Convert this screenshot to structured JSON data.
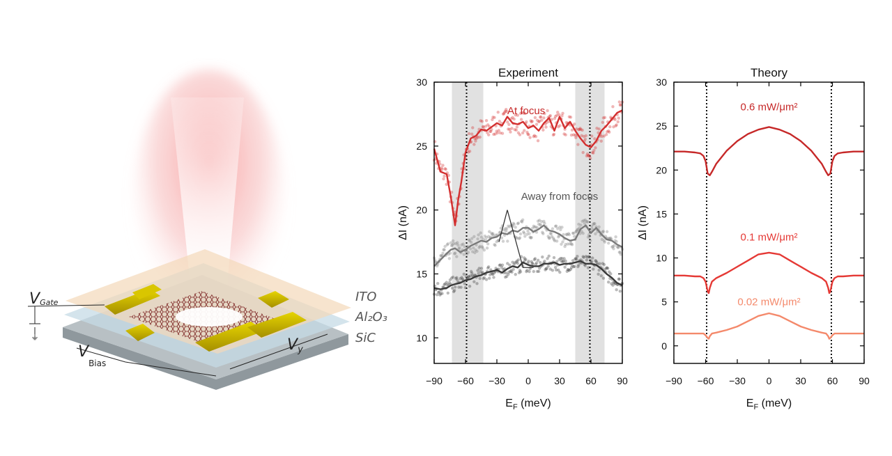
{
  "device": {
    "labels": {
      "v_gate_main": "V",
      "v_gate_sub": "Gate",
      "v_bias_main": "V",
      "v_bias_sub": "Bias",
      "v_y_main": "V",
      "v_y_sub": "y",
      "ito": "ITO",
      "al2o3": "Al₂O₃",
      "sic": "SiC"
    },
    "colors": {
      "laser": "#f28c8c",
      "gold": "#c8b400",
      "substrate": "#9aa3a8",
      "ito": "#f3d9b9"
    }
  },
  "chart_data": [
    {
      "type": "scatter",
      "title": "Experiment",
      "xlabel_main": "E",
      "xlabel_sub": "F",
      "xlabel_tail": " (meV)",
      "ylabel": "ΔI (nA)",
      "xlim": [
        -90,
        90
      ],
      "ylim": [
        8,
        30
      ],
      "xticks": [
        -90,
        -60,
        -30,
        0,
        30,
        60,
        90
      ],
      "yticks": [
        10,
        15,
        20,
        25,
        30
      ],
      "shaded_bands": [
        [
          -73,
          -60
        ],
        [
          -60,
          -43
        ],
        [
          45,
          58
        ],
        [
          58,
          73
        ]
      ],
      "dotted_lines": [
        -59,
        59
      ],
      "annotations": [
        {
          "text": "At focus",
          "x": -20,
          "y": 27.5
        },
        {
          "text": "Away from focus",
          "x": 30,
          "y": 20.8
        }
      ],
      "series": [
        {
          "name": "At focus",
          "color": "#d32f2f",
          "x": [
            -90,
            -84,
            -78,
            -74,
            -70,
            -67,
            -64,
            -60,
            -55,
            -50,
            -45,
            -40,
            -35,
            -30,
            -25,
            -20,
            -15,
            -10,
            -5,
            0,
            5,
            10,
            15,
            20,
            25,
            30,
            35,
            40,
            45,
            50,
            55,
            60,
            65,
            70,
            75,
            80,
            85,
            90
          ],
          "y": [
            24.8,
            23.0,
            22.8,
            21.0,
            18.8,
            20.8,
            22.2,
            24.5,
            25.6,
            25.8,
            26.3,
            26.2,
            26.5,
            26.8,
            26.6,
            27.3,
            26.8,
            26.7,
            26.9,
            26.4,
            26.6,
            26.2,
            26.8,
            27.2,
            26.2,
            27.3,
            26.4,
            26.9,
            26.2,
            25.6,
            25.1,
            24.9,
            25.4,
            26.2,
            26.6,
            27.1,
            27.6,
            27.8
          ]
        },
        {
          "name": "Away from focus",
          "color": "#7a7a7a",
          "x": [
            -90,
            -84,
            -78,
            -74,
            -70,
            -65,
            -60,
            -55,
            -50,
            -45,
            -40,
            -35,
            -30,
            -25,
            -20,
            -15,
            -10,
            -5,
            0,
            5,
            10,
            15,
            20,
            25,
            30,
            35,
            40,
            45,
            50,
            55,
            60,
            65,
            70,
            75,
            80,
            85,
            90
          ],
          "y": [
            15.6,
            16.1,
            16.6,
            16.9,
            17.0,
            16.7,
            16.9,
            17.2,
            17.4,
            17.6,
            17.5,
            17.8,
            17.9,
            18.2,
            18.1,
            18.4,
            18.3,
            18.6,
            18.6,
            18.3,
            18.5,
            18.8,
            18.4,
            18.3,
            18.1,
            17.8,
            17.6,
            17.7,
            18.5,
            18.8,
            18.2,
            18.6,
            18.1,
            17.7,
            17.6,
            17.3,
            17.1
          ]
        },
        {
          "name": "Away from focus",
          "color": "#3a3a3a",
          "x": [
            -90,
            -84,
            -78,
            -74,
            -70,
            -65,
            -60,
            -55,
            -50,
            -45,
            -40,
            -35,
            -30,
            -25,
            -20,
            -15,
            -10,
            -5,
            0,
            5,
            10,
            15,
            20,
            25,
            30,
            35,
            40,
            45,
            50,
            55,
            60,
            65,
            70,
            75,
            80,
            85,
            90
          ],
          "y": [
            13.9,
            13.8,
            13.9,
            14.1,
            14.2,
            14.3,
            14.5,
            14.6,
            14.8,
            14.9,
            15.1,
            15.2,
            15.3,
            15.1,
            15.4,
            15.6,
            15.5,
            15.9,
            15.7,
            15.6,
            15.6,
            15.8,
            15.8,
            15.9,
            15.7,
            15.8,
            15.8,
            15.9,
            16.0,
            15.8,
            15.8,
            15.7,
            15.4,
            15.0,
            14.7,
            14.3,
            14.1
          ]
        }
      ]
    },
    {
      "type": "line",
      "title": "Theory",
      "xlabel_main": "E",
      "xlabel_sub": "F",
      "xlabel_tail": " (meV)",
      "ylabel": "ΔI (nA)",
      "xlim": [
        -90,
        90
      ],
      "ylim": [
        -2,
        30
      ],
      "xticks": [
        -90,
        -60,
        -30,
        0,
        30,
        60,
        90
      ],
      "yticks": [
        0,
        5,
        10,
        15,
        20,
        25,
        30
      ],
      "dotted_lines": [
        -59,
        59
      ],
      "series": [
        {
          "name": "0.6 mW/μm²",
          "color": "#c62828",
          "x": [
            -90,
            -80,
            -70,
            -65,
            -62,
            -60,
            -58,
            -56,
            -54,
            -50,
            -40,
            -30,
            -20,
            -10,
            0,
            10,
            20,
            30,
            40,
            50,
            54,
            56,
            58,
            60,
            62,
            65,
            70,
            80,
            90
          ],
          "y": [
            22.1,
            22.1,
            22.0,
            21.9,
            21.6,
            21.0,
            19.6,
            19.4,
            19.8,
            20.7,
            22.2,
            23.3,
            24.1,
            24.6,
            24.9,
            24.6,
            24.1,
            23.3,
            22.2,
            20.7,
            19.8,
            19.4,
            19.6,
            21.0,
            21.6,
            21.9,
            22.0,
            22.1,
            22.1
          ]
        },
        {
          "name": "0.1 mW/μm²",
          "color": "#e53935",
          "x": [
            -90,
            -80,
            -70,
            -65,
            -62,
            -60,
            -58,
            -57,
            -56,
            -54,
            -50,
            -40,
            -30,
            -20,
            -10,
            0,
            10,
            20,
            30,
            40,
            50,
            54,
            56,
            57,
            58,
            60,
            62,
            65,
            70,
            80,
            90
          ],
          "y": [
            8.0,
            8.0,
            7.9,
            7.9,
            7.7,
            7.3,
            6.2,
            6.0,
            6.6,
            7.3,
            7.7,
            8.3,
            9.0,
            9.7,
            10.4,
            10.6,
            10.4,
            9.7,
            9.0,
            8.3,
            7.7,
            7.3,
            6.6,
            6.0,
            6.2,
            7.3,
            7.7,
            7.9,
            7.9,
            8.0,
            8.0
          ]
        },
        {
          "name": "0.02 mW/μm²",
          "color": "#f4896b",
          "x": [
            -90,
            -80,
            -70,
            -65,
            -62,
            -60,
            -58,
            -57,
            -56,
            -54,
            -50,
            -40,
            -30,
            -20,
            -10,
            0,
            10,
            20,
            30,
            40,
            50,
            54,
            56,
            57,
            58,
            60,
            62,
            65,
            70,
            80,
            90
          ],
          "y": [
            1.4,
            1.4,
            1.4,
            1.4,
            1.4,
            1.2,
            0.9,
            0.8,
            1.1,
            1.4,
            1.5,
            1.8,
            2.2,
            2.8,
            3.4,
            3.7,
            3.4,
            2.8,
            2.2,
            1.8,
            1.5,
            1.4,
            1.1,
            0.8,
            0.9,
            1.2,
            1.4,
            1.4,
            1.4,
            1.4,
            1.4
          ]
        }
      ]
    }
  ]
}
